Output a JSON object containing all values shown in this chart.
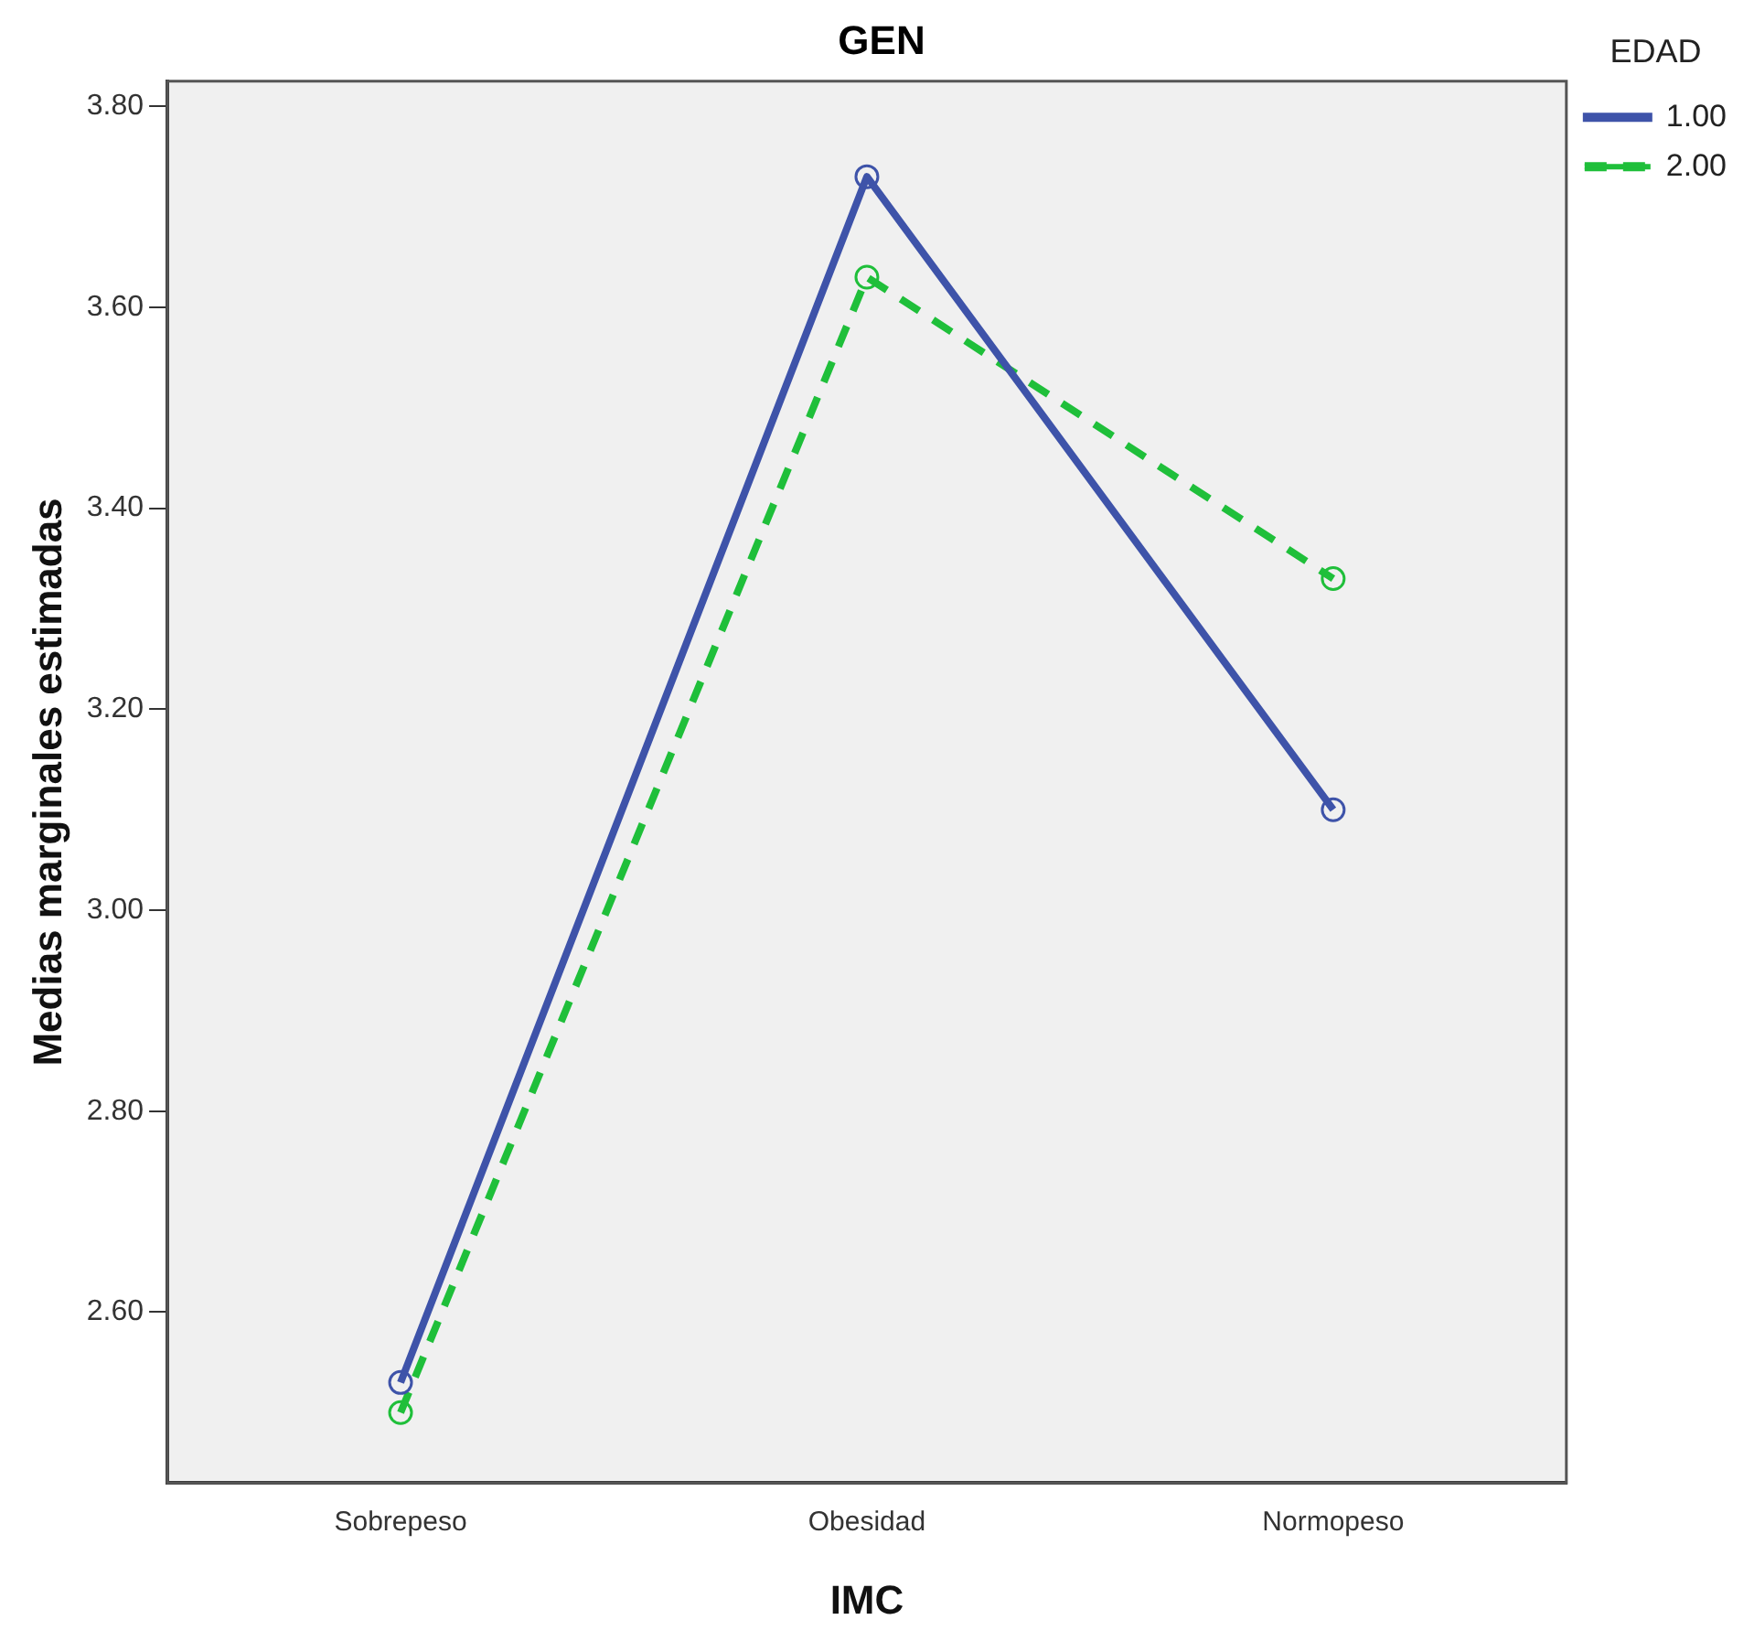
{
  "chart_data": {
    "type": "line",
    "title": "GEN",
    "xlabel": "IMC",
    "ylabel": "Medias marginales estimadas",
    "legend_title": "EDAD",
    "categories": [
      "Sobrepeso",
      "Obesidad",
      "Normopeso"
    ],
    "series": [
      {
        "name": "1.00",
        "color": "#3e53a9",
        "values": [
          2.53,
          3.73,
          3.1
        ],
        "line_style": "solid"
      },
      {
        "name": "2.00",
        "color": "#1fbf3a",
        "values": [
          2.5,
          3.63,
          3.33
        ],
        "line_style": "dashed"
      }
    ],
    "ylim": [
      2.43,
      3.825
    ],
    "yticks": [
      {
        "value": 2.6,
        "label": "2.60"
      },
      {
        "value": 2.8,
        "label": "2.80"
      },
      {
        "value": 3.0,
        "label": "3.00"
      },
      {
        "value": 3.2,
        "label": "3.20"
      },
      {
        "value": 3.4,
        "label": "3.40"
      },
      {
        "value": 3.6,
        "label": "3.60"
      },
      {
        "value": 3.8,
        "label": "3.80"
      }
    ],
    "grid": false,
    "legend": "top right",
    "marker": "circle"
  }
}
